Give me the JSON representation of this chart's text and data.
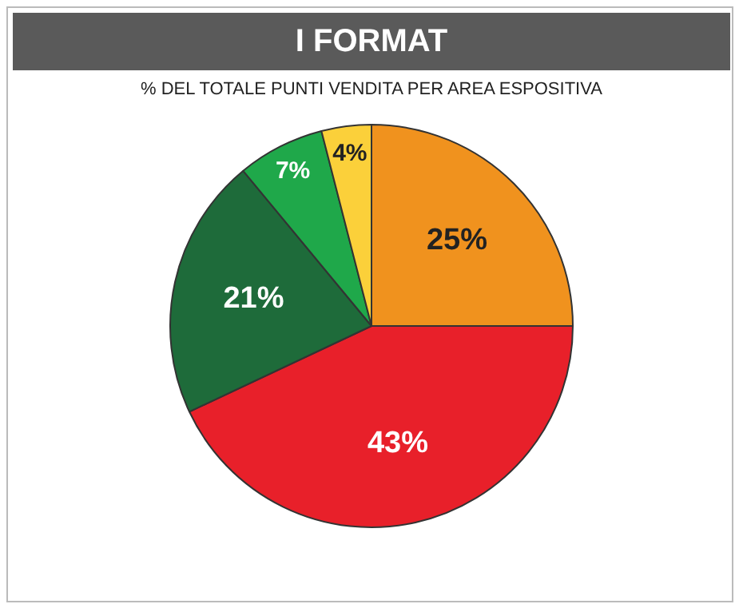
{
  "chart_data": {
    "type": "pie",
    "title": "I FORMAT",
    "subtitle": "% DEL TOTALE PUNTI VENDITA PER AREA ESPOSITIVA",
    "categories": [
      null,
      null,
      null,
      null,
      null
    ],
    "values": [
      25,
      43,
      21,
      7,
      4
    ],
    "colors": [
      "#f0921e",
      "#e8202a",
      "#1e6b3a",
      "#1fa84a",
      "#fbd03a"
    ],
    "value_labels": [
      "25%",
      "43%",
      "21%",
      "7%",
      "4%"
    ],
    "legend": false
  }
}
